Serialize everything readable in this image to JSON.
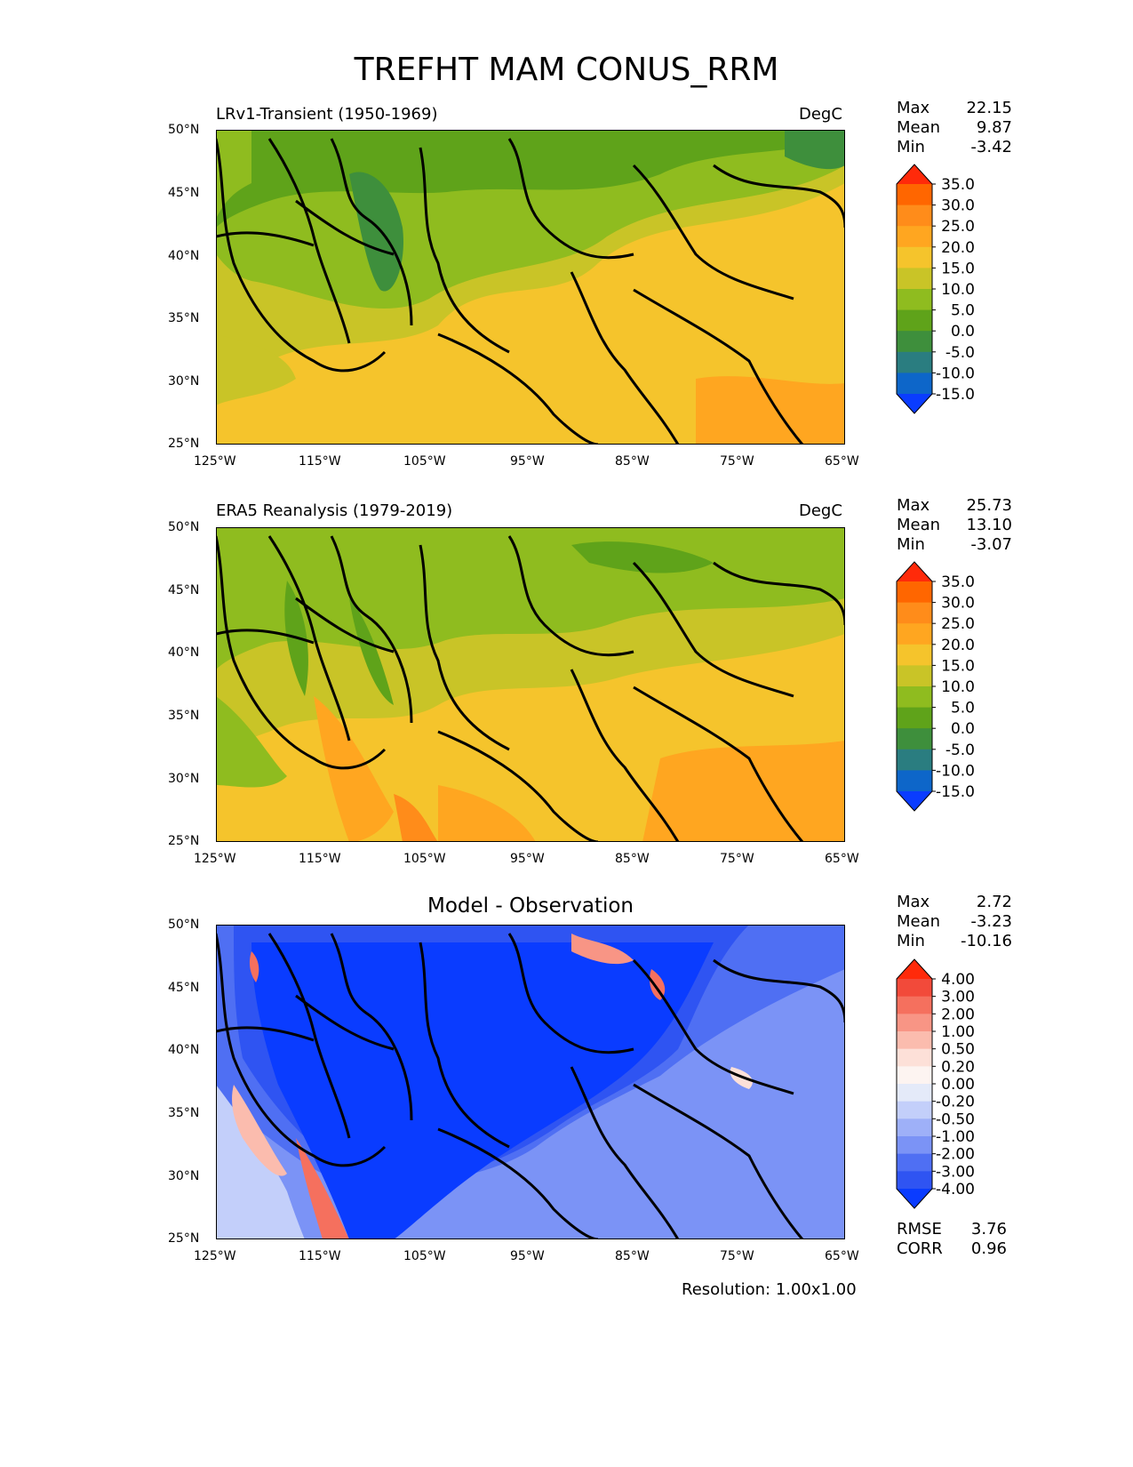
{
  "figure": {
    "title": "TREFHT MAM CONUS_RRM",
    "resolution": "Resolution: 1.00x1.00"
  },
  "axes": {
    "lat_ticks": [
      "50°N",
      "45°N",
      "40°N",
      "35°N",
      "30°N",
      "25°N"
    ],
    "lon_ticks": [
      "125°W",
      "115°W",
      "105°W",
      "95°W",
      "85°W",
      "75°W",
      "65°W"
    ]
  },
  "panels": [
    {
      "id": "model",
      "left_title": "LRv1-Transient (1950-1969)",
      "right_title": "DegC",
      "center_title": "",
      "stats": [
        {
          "label": "Max",
          "value": "22.15"
        },
        {
          "label": "Mean",
          "value": "9.87"
        },
        {
          "label": "Min",
          "value": "-3.42"
        }
      ],
      "colorbar": {
        "labels": [
          "35.0",
          "30.0",
          "25.0",
          "20.0",
          "15.0",
          "10.0",
          "5.0",
          "0.0",
          "-5.0",
          "-10.0",
          "-15.0"
        ],
        "colors": [
          "#ff2a0a",
          "#ff6600",
          "#ff8c1a",
          "#ffa620",
          "#f5c42c",
          "#c9c427",
          "#8fbc1f",
          "#5fa31a",
          "#3e8f3c",
          "#2a7d80",
          "#0d66c9",
          "#0a3cff"
        ]
      }
    },
    {
      "id": "obs",
      "left_title": "ERA5 Reanalysis (1979-2019)",
      "right_title": "DegC",
      "center_title": "",
      "stats": [
        {
          "label": "Max",
          "value": "25.73"
        },
        {
          "label": "Mean",
          "value": "13.10"
        },
        {
          "label": "Min",
          "value": "-3.07"
        }
      ],
      "colorbar": {
        "labels": [
          "35.0",
          "30.0",
          "25.0",
          "20.0",
          "15.0",
          "10.0",
          "5.0",
          "0.0",
          "-5.0",
          "-10.0",
          "-15.0"
        ],
        "colors": [
          "#ff2a0a",
          "#ff6600",
          "#ff8c1a",
          "#ffa620",
          "#f5c42c",
          "#c9c427",
          "#8fbc1f",
          "#5fa31a",
          "#3e8f3c",
          "#2a7d80",
          "#0d66c9",
          "#0a3cff"
        ]
      }
    },
    {
      "id": "diff",
      "left_title": "",
      "right_title": "",
      "center_title": "Model - Observation",
      "stats": [
        {
          "label": "Max",
          "value": "2.72"
        },
        {
          "label": "Mean",
          "value": "-3.23"
        },
        {
          "label": "Min",
          "value": "-10.16"
        }
      ],
      "extra_stats": [
        {
          "label": "RMSE",
          "value": "3.76"
        },
        {
          "label": "CORR",
          "value": "0.96"
        }
      ],
      "colorbar": {
        "labels": [
          "4.00",
          "3.00",
          "2.00",
          "1.00",
          "0.50",
          "0.20",
          "0.00",
          "-0.20",
          "-0.50",
          "-1.00",
          "-2.00",
          "-3.00",
          "-4.00"
        ],
        "colors": [
          "#ff2a0a",
          "#f24a3a",
          "#f5705e",
          "#f89585",
          "#fbbcae",
          "#fde0d8",
          "#fdf4f1",
          "#e4eaf9",
          "#c3cffa",
          "#9eb0f8",
          "#7b93f6",
          "#4f6ff3",
          "#2f54f2",
          "#0a3cff"
        ]
      }
    }
  ]
}
